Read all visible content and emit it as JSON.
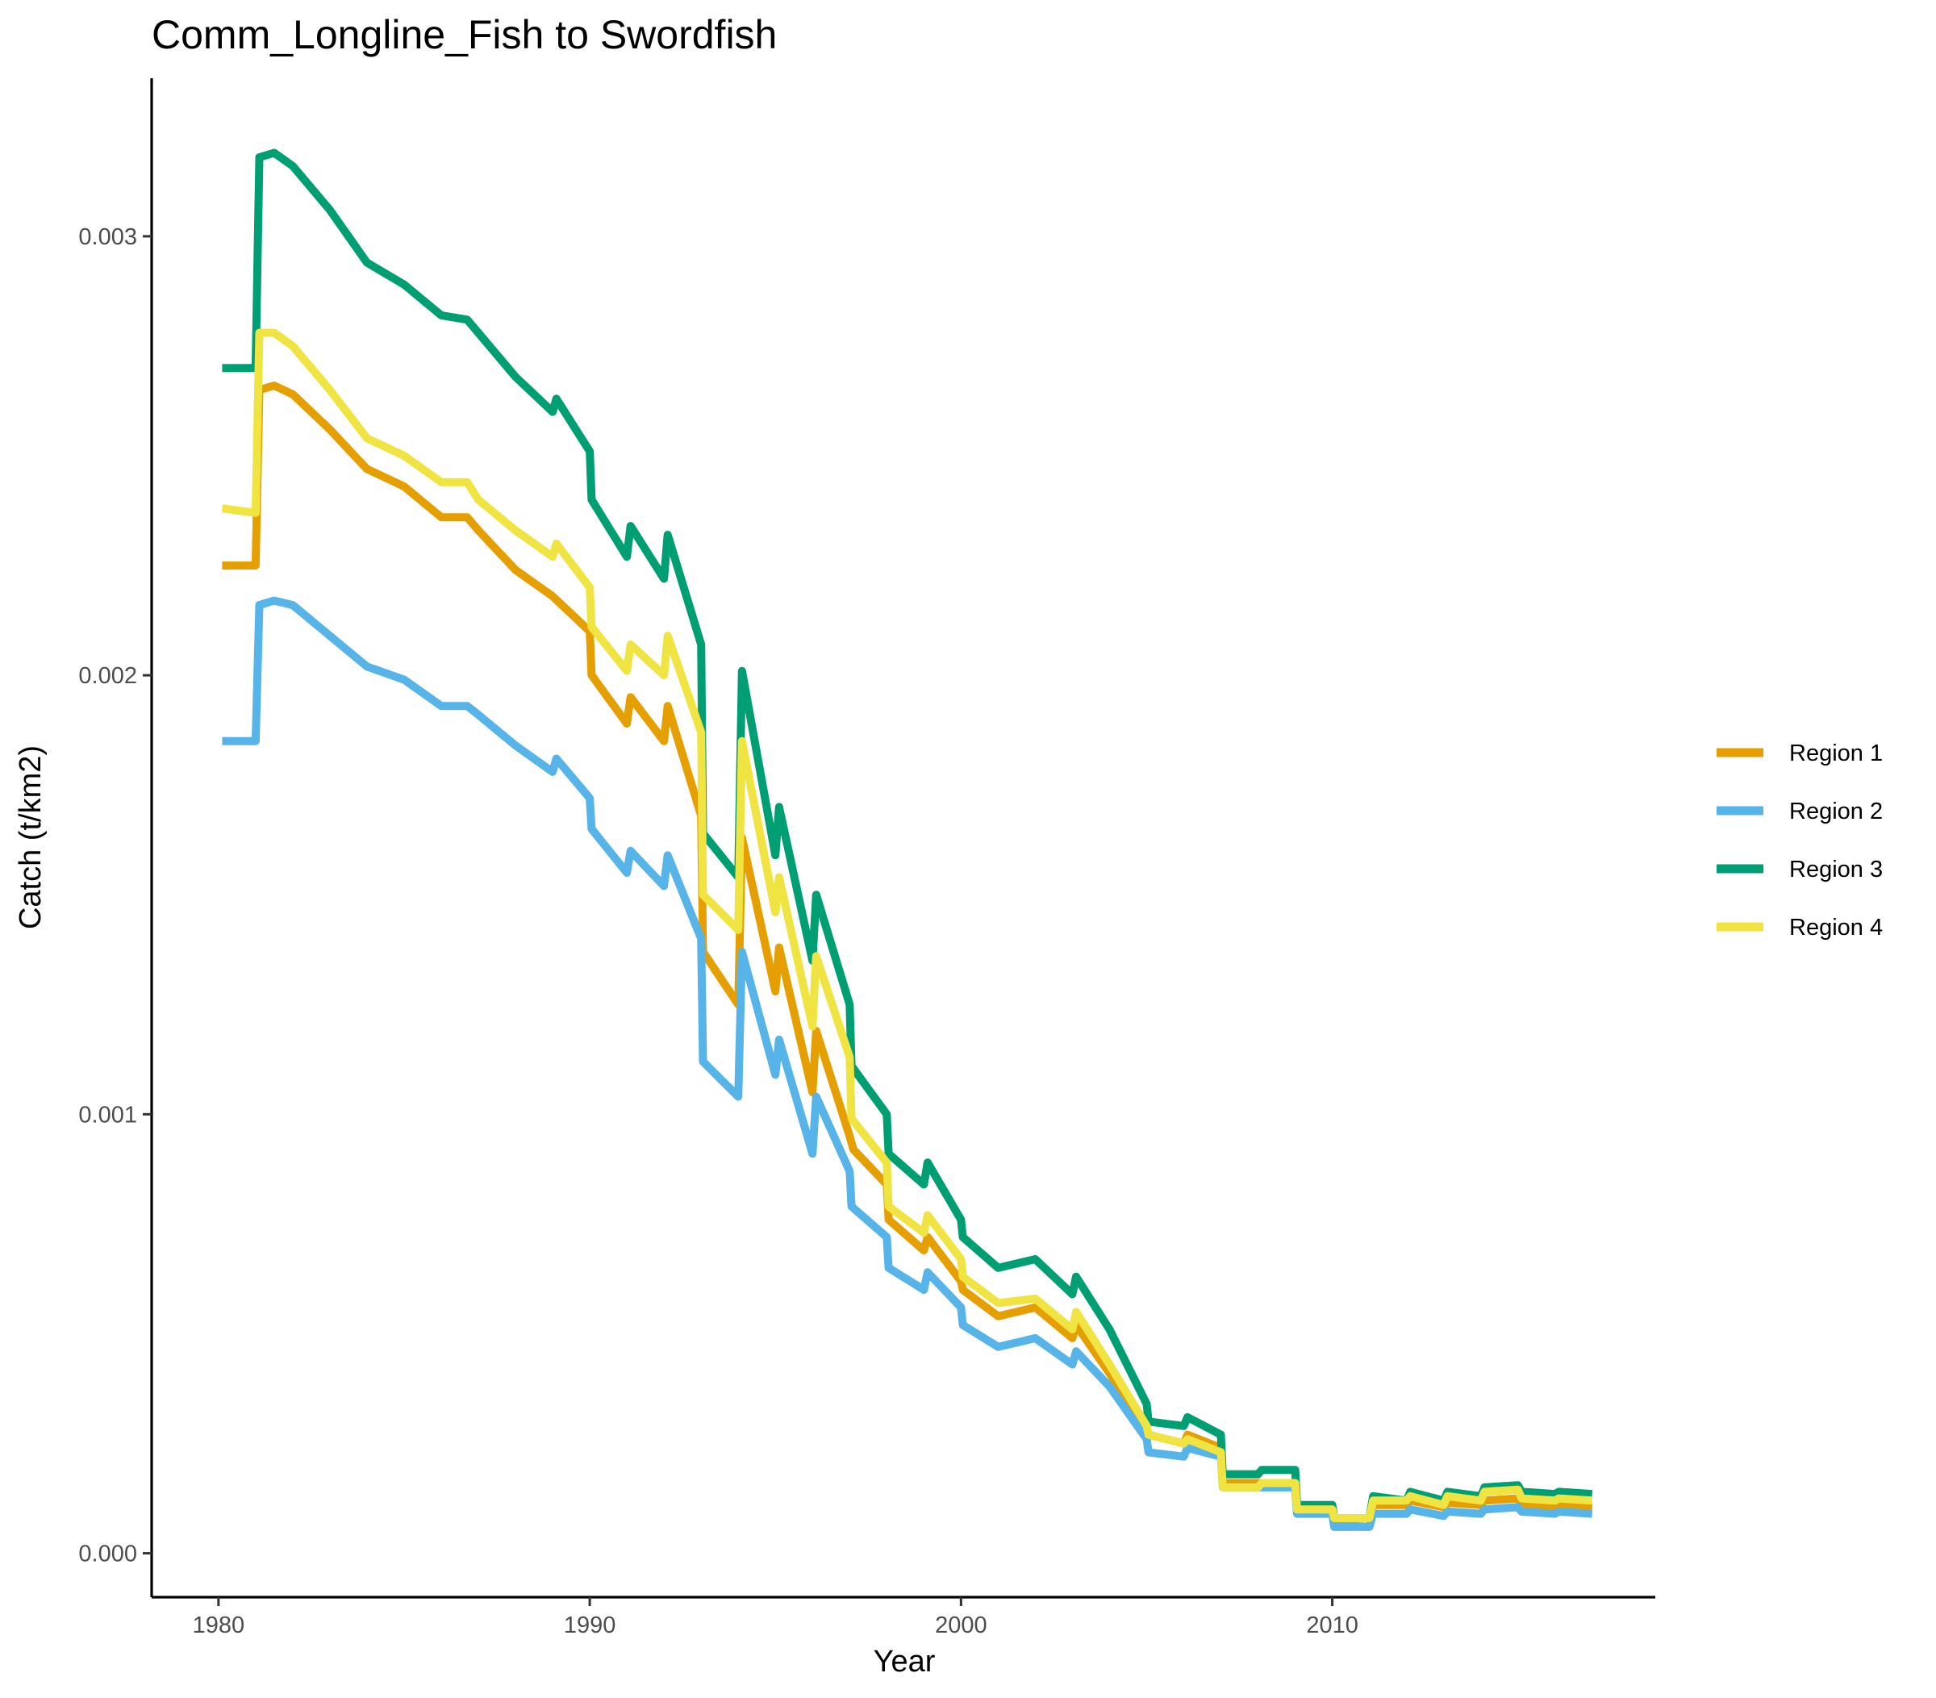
{
  "chart_data": {
    "type": "line",
    "title": "Comm_Longline_Fish to Swordfish",
    "xlabel": "Year",
    "ylabel": "Catch (t/km2)",
    "xlim": [
      1978.2,
      2018.7
    ],
    "ylim": [
      -0.0001,
      0.00336
    ],
    "x_ticks": [
      1980,
      1990,
      2000,
      2010
    ],
    "x_tick_labels": [
      "1980",
      "1990",
      "2000",
      "2010"
    ],
    "y_ticks": [
      0,
      0.001,
      0.002,
      0.003
    ],
    "y_tick_labels": [
      "0.000",
      "0.001",
      "0.002",
      "0.003"
    ],
    "grid": false,
    "legend_position": "right",
    "series": [
      {
        "name": "Region 1",
        "color": "#E69F00",
        "points": [
          [
            1980.1,
            0.00225
          ],
          [
            1981.0,
            0.00225
          ],
          [
            1981.1,
            0.00265
          ],
          [
            1981.5,
            0.00266
          ],
          [
            1982.0,
            0.00264
          ],
          [
            1983.0,
            0.00256
          ],
          [
            1984.0,
            0.00247
          ],
          [
            1985.0,
            0.00243
          ],
          [
            1986.0,
            0.00236
          ],
          [
            1986.7,
            0.00236
          ],
          [
            1987.0,
            0.00233
          ],
          [
            1988.0,
            0.00224
          ],
          [
            1989.0,
            0.00218
          ],
          [
            1989.5,
            0.00214
          ],
          [
            1990.0,
            0.0021
          ],
          [
            1990.05,
            0.002
          ],
          [
            1991.0,
            0.00189
          ],
          [
            1991.1,
            0.00195
          ],
          [
            1992.0,
            0.00185
          ],
          [
            1992.1,
            0.00193
          ],
          [
            1993.0,
            0.00168
          ],
          [
            1993.05,
            0.00137
          ],
          [
            1994.0,
            0.00125
          ],
          [
            1994.1,
            0.00163
          ],
          [
            1995.0,
            0.00128
          ],
          [
            1995.1,
            0.00138
          ],
          [
            1996.0,
            0.00105
          ],
          [
            1996.1,
            0.00119
          ],
          [
            1997.0,
            0.00095
          ],
          [
            1997.1,
            0.00092
          ],
          [
            1998.0,
            0.00084
          ],
          [
            1998.05,
            0.00076
          ],
          [
            1999.0,
            0.00069
          ],
          [
            1999.1,
            0.00072
          ],
          [
            2000.0,
            0.00062
          ],
          [
            2000.05,
            0.0006
          ],
          [
            2001.0,
            0.00054
          ],
          [
            2002.0,
            0.00056
          ],
          [
            2003.0,
            0.00049
          ],
          [
            2003.1,
            0.00052
          ],
          [
            2004.0,
            0.00041
          ],
          [
            2005.0,
            0.00028
          ],
          [
            2005.05,
            0.00027
          ],
          [
            2006.0,
            0.00025
          ],
          [
            2006.1,
            0.00027
          ],
          [
            2007.0,
            0.00024
          ],
          [
            2007.05,
            0.00016
          ],
          [
            2008.0,
            0.00016
          ],
          [
            2009.0,
            0.00016
          ],
          [
            2009.05,
            9.5e-05
          ],
          [
            2010.0,
            9.5e-05
          ],
          [
            2010.05,
            7.5e-05
          ],
          [
            2011.0,
            8e-05
          ],
          [
            2011.1,
            0.00011
          ],
          [
            2012.0,
            0.00011
          ],
          [
            2012.1,
            0.00012
          ],
          [
            2013.0,
            0.000105
          ],
          [
            2013.1,
            0.000115
          ],
          [
            2014.0,
            0.00011
          ],
          [
            2014.1,
            0.00012
          ],
          [
            2015.0,
            0.000125
          ],
          [
            2015.1,
            0.00011
          ],
          [
            2016.0,
            0.000105
          ],
          [
            2016.1,
            0.00011
          ],
          [
            2017.0,
            0.000105
          ]
        ]
      },
      {
        "name": "Region 2",
        "color": "#56B4E9",
        "points": [
          [
            1980.1,
            0.00185
          ],
          [
            1981.0,
            0.00185
          ],
          [
            1981.1,
            0.00216
          ],
          [
            1981.5,
            0.00217
          ],
          [
            1982.0,
            0.00216
          ],
          [
            1983.0,
            0.00209
          ],
          [
            1984.0,
            0.00202
          ],
          [
            1985.0,
            0.00199
          ],
          [
            1986.0,
            0.00193
          ],
          [
            1986.7,
            0.00193
          ],
          [
            1987.0,
            0.00191
          ],
          [
            1988.0,
            0.00184
          ],
          [
            1989.0,
            0.00178
          ],
          [
            1989.1,
            0.00181
          ],
          [
            1990.0,
            0.00172
          ],
          [
            1990.05,
            0.00165
          ],
          [
            1991.0,
            0.00155
          ],
          [
            1991.1,
            0.0016
          ],
          [
            1992.0,
            0.00152
          ],
          [
            1992.1,
            0.00159
          ],
          [
            1993.0,
            0.0014
          ],
          [
            1993.05,
            0.00112
          ],
          [
            1994.0,
            0.00104
          ],
          [
            1994.1,
            0.00137
          ],
          [
            1995.0,
            0.00109
          ],
          [
            1995.1,
            0.00117
          ],
          [
            1996.0,
            0.00091
          ],
          [
            1996.1,
            0.00104
          ],
          [
            1997.0,
            0.00087
          ],
          [
            1997.05,
            0.00079
          ],
          [
            1998.0,
            0.00072
          ],
          [
            1998.05,
            0.00065
          ],
          [
            1999.0,
            0.0006
          ],
          [
            1999.1,
            0.00064
          ],
          [
            2000.0,
            0.00056
          ],
          [
            2000.05,
            0.00052
          ],
          [
            2001.0,
            0.00047
          ],
          [
            2002.0,
            0.00049
          ],
          [
            2003.0,
            0.00043
          ],
          [
            2003.1,
            0.00046
          ],
          [
            2004.0,
            0.00038
          ],
          [
            2005.0,
            0.00026
          ],
          [
            2005.05,
            0.00023
          ],
          [
            2006.0,
            0.00022
          ],
          [
            2006.1,
            0.00024
          ],
          [
            2007.0,
            0.00022
          ],
          [
            2007.05,
            0.00015
          ],
          [
            2008.0,
            0.00015
          ],
          [
            2009.0,
            0.00015
          ],
          [
            2009.05,
            9e-05
          ],
          [
            2010.0,
            9e-05
          ],
          [
            2010.05,
            6e-05
          ],
          [
            2011.0,
            6e-05
          ],
          [
            2011.1,
            9e-05
          ],
          [
            2012.0,
            9e-05
          ],
          [
            2012.1,
            0.0001
          ],
          [
            2013.0,
            8.5e-05
          ],
          [
            2013.1,
            9.5e-05
          ],
          [
            2014.0,
            9e-05
          ],
          [
            2014.1,
            0.0001
          ],
          [
            2015.0,
            0.000105
          ],
          [
            2015.1,
            9.5e-05
          ],
          [
            2016.0,
            9e-05
          ],
          [
            2016.1,
            9.5e-05
          ],
          [
            2017.0,
            9e-05
          ]
        ]
      },
      {
        "name": "Region 3",
        "color": "#009E73",
        "points": [
          [
            1980.1,
            0.0027
          ],
          [
            1981.0,
            0.0027
          ],
          [
            1981.1,
            0.00318
          ],
          [
            1981.5,
            0.00319
          ],
          [
            1982.0,
            0.00316
          ],
          [
            1983.0,
            0.00306
          ],
          [
            1984.0,
            0.00294
          ],
          [
            1985.0,
            0.00289
          ],
          [
            1986.0,
            0.00282
          ],
          [
            1986.7,
            0.00281
          ],
          [
            1987.0,
            0.00278
          ],
          [
            1988.0,
            0.00268
          ],
          [
            1989.0,
            0.0026
          ],
          [
            1989.1,
            0.00263
          ],
          [
            1990.0,
            0.00251
          ],
          [
            1990.05,
            0.0024
          ],
          [
            1991.0,
            0.00227
          ],
          [
            1991.1,
            0.00234
          ],
          [
            1992.0,
            0.00222
          ],
          [
            1992.1,
            0.00232
          ],
          [
            1993.0,
            0.00207
          ],
          [
            1993.05,
            0.00164
          ],
          [
            1994.0,
            0.00154
          ],
          [
            1994.1,
            0.00201
          ],
          [
            1995.0,
            0.00159
          ],
          [
            1995.1,
            0.0017
          ],
          [
            1996.0,
            0.00135
          ],
          [
            1996.1,
            0.0015
          ],
          [
            1997.0,
            0.00125
          ],
          [
            1997.05,
            0.00111
          ],
          [
            1998.0,
            0.001
          ],
          [
            1998.05,
            0.00091
          ],
          [
            1999.0,
            0.00084
          ],
          [
            1999.1,
            0.00089
          ],
          [
            2000.0,
            0.00076
          ],
          [
            2000.05,
            0.00072
          ],
          [
            2001.0,
            0.00065
          ],
          [
            2002.0,
            0.00067
          ],
          [
            2003.0,
            0.00059
          ],
          [
            2003.1,
            0.00063
          ],
          [
            2004.0,
            0.00051
          ],
          [
            2005.0,
            0.00034
          ],
          [
            2005.05,
            0.0003
          ],
          [
            2006.0,
            0.00029
          ],
          [
            2006.1,
            0.00031
          ],
          [
            2007.0,
            0.00027
          ],
          [
            2007.05,
            0.00018
          ],
          [
            2008.0,
            0.00018
          ],
          [
            2008.1,
            0.00019
          ],
          [
            2009.0,
            0.00019
          ],
          [
            2009.05,
            0.00011
          ],
          [
            2010.0,
            0.00011
          ],
          [
            2010.05,
            8e-05
          ],
          [
            2011.0,
            8e-05
          ],
          [
            2011.1,
            0.00013
          ],
          [
            2012.0,
            0.00012
          ],
          [
            2012.1,
            0.00014
          ],
          [
            2013.0,
            0.00012
          ],
          [
            2013.1,
            0.00014
          ],
          [
            2014.0,
            0.00013
          ],
          [
            2014.1,
            0.00015
          ],
          [
            2015.0,
            0.000155
          ],
          [
            2015.1,
            0.00014
          ],
          [
            2016.0,
            0.000135
          ],
          [
            2016.1,
            0.00014
          ],
          [
            2017.0,
            0.000135
          ]
        ]
      },
      {
        "name": "Region 4",
        "color": "#F0E442",
        "points": [
          [
            1980.1,
            0.00238
          ],
          [
            1981.0,
            0.00237
          ],
          [
            1981.1,
            0.00278
          ],
          [
            1981.5,
            0.00278
          ],
          [
            1982.0,
            0.00275
          ],
          [
            1983.0,
            0.00265
          ],
          [
            1984.0,
            0.00254
          ],
          [
            1985.0,
            0.0025
          ],
          [
            1986.0,
            0.00244
          ],
          [
            1986.7,
            0.00244
          ],
          [
            1987.0,
            0.0024
          ],
          [
            1988.0,
            0.00233
          ],
          [
            1989.0,
            0.00227
          ],
          [
            1989.1,
            0.0023
          ],
          [
            1990.0,
            0.0022
          ],
          [
            1990.05,
            0.00211
          ],
          [
            1991.0,
            0.00201
          ],
          [
            1991.1,
            0.00207
          ],
          [
            1992.0,
            0.002
          ],
          [
            1992.1,
            0.00209
          ],
          [
            1993.0,
            0.00187
          ],
          [
            1993.05,
            0.0015
          ],
          [
            1994.0,
            0.00142
          ],
          [
            1994.1,
            0.00185
          ],
          [
            1995.0,
            0.00146
          ],
          [
            1995.1,
            0.00154
          ],
          [
            1996.0,
            0.0012
          ],
          [
            1996.1,
            0.00136
          ],
          [
            1997.0,
            0.00113
          ],
          [
            1997.05,
            0.00099
          ],
          [
            1998.0,
            0.00089
          ],
          [
            1998.05,
            0.00079
          ],
          [
            1999.0,
            0.00073
          ],
          [
            1999.1,
            0.00077
          ],
          [
            2000.0,
            0.00067
          ],
          [
            2000.05,
            0.00063
          ],
          [
            2001.0,
            0.00057
          ],
          [
            2002.0,
            0.00058
          ],
          [
            2003.0,
            0.00051
          ],
          [
            2003.1,
            0.00055
          ],
          [
            2004.0,
            0.00043
          ],
          [
            2005.0,
            0.00029
          ],
          [
            2005.05,
            0.00027
          ],
          [
            2006.0,
            0.00025
          ],
          [
            2006.1,
            0.00026
          ],
          [
            2007.0,
            0.00023
          ],
          [
            2007.05,
            0.00015
          ],
          [
            2008.0,
            0.00015
          ],
          [
            2008.1,
            0.00016
          ],
          [
            2009.0,
            0.00016
          ],
          [
            2009.05,
            0.0001
          ],
          [
            2010.0,
            0.0001
          ],
          [
            2010.05,
            8e-05
          ],
          [
            2011.0,
            8e-05
          ],
          [
            2011.1,
            0.00012
          ],
          [
            2012.0,
            0.00012
          ],
          [
            2012.1,
            0.00013
          ],
          [
            2013.0,
            0.00011
          ],
          [
            2013.1,
            0.00013
          ],
          [
            2014.0,
            0.00012
          ],
          [
            2014.1,
            0.00014
          ],
          [
            2015.0,
            0.000145
          ],
          [
            2015.1,
            0.000125
          ],
          [
            2016.0,
            0.00012
          ],
          [
            2016.1,
            0.000125
          ],
          [
            2017.0,
            0.00012
          ]
        ]
      }
    ]
  }
}
